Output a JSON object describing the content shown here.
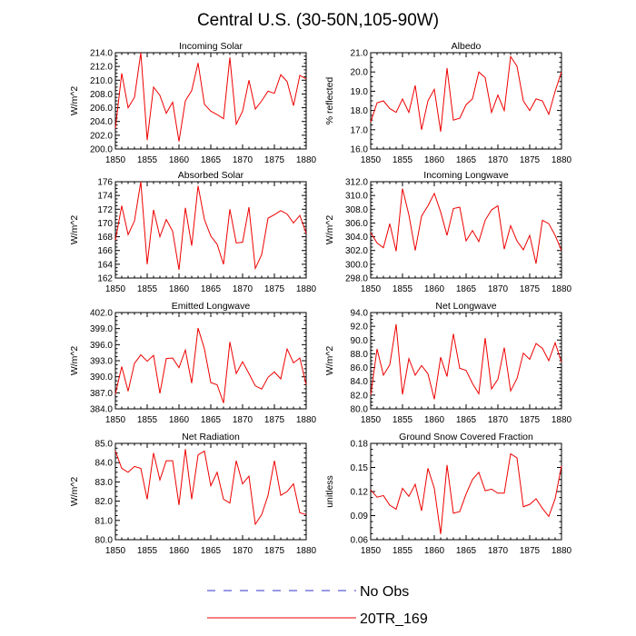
{
  "title": "Central U.S. (30-50N,105-90W)",
  "legend": {
    "items": [
      {
        "label": "No Obs",
        "color": "#3333cc",
        "style": "dashed"
      },
      {
        "label": "20TR_169",
        "color": "#ee0000",
        "style": "solid"
      }
    ]
  },
  "chart_data": [
    {
      "type": "line",
      "title": "Incoming Solar",
      "ylabel": "W/m^2",
      "xlabel": "",
      "xlim": [
        1850,
        1880
      ],
      "ylim": [
        200,
        214
      ],
      "yticks": [
        "200.0",
        "202.0",
        "204.0",
        "206.0",
        "208.0",
        "210.0",
        "212.0",
        "214.0"
      ],
      "xticks": [
        "1850",
        "1855",
        "1860",
        "1865",
        "1870",
        "1875",
        "1880"
      ],
      "x": [
        1850,
        1851,
        1852,
        1853,
        1854,
        1855,
        1856,
        1857,
        1858,
        1859,
        1860,
        1861,
        1862,
        1863,
        1864,
        1865,
        1866,
        1867,
        1868,
        1869,
        1870,
        1871,
        1872,
        1873,
        1874,
        1875,
        1876,
        1877,
        1878,
        1879,
        1880
      ],
      "series": [
        {
          "name": "20TR_169",
          "values": [
            203.0,
            211.0,
            206.0,
            207.5,
            214.0,
            201.3,
            209.0,
            207.8,
            205.2,
            206.8,
            201.1,
            207.0,
            208.5,
            212.5,
            206.5,
            205.5,
            205.0,
            204.4,
            213.3,
            203.6,
            205.5,
            210.0,
            205.8,
            207.0,
            208.4,
            208.1,
            210.8,
            209.8,
            206.3,
            210.7,
            210.2
          ]
        }
      ]
    },
    {
      "type": "line",
      "title": "Albedo",
      "ylabel": "% reflected",
      "xlabel": "",
      "xlim": [
        1850,
        1880
      ],
      "ylim": [
        16,
        21
      ],
      "yticks": [
        "16.0",
        "17.0",
        "18.0",
        "19.0",
        "20.0",
        "21.0"
      ],
      "xticks": [
        "1850",
        "1855",
        "1860",
        "1865",
        "1870",
        "1875",
        "1880"
      ],
      "x": [
        1850,
        1851,
        1852,
        1853,
        1854,
        1855,
        1856,
        1857,
        1858,
        1859,
        1860,
        1861,
        1862,
        1863,
        1864,
        1865,
        1866,
        1867,
        1868,
        1869,
        1870,
        1871,
        1872,
        1873,
        1874,
        1875,
        1876,
        1877,
        1878,
        1879,
        1880
      ],
      "series": [
        {
          "name": "20TR_169",
          "values": [
            17.4,
            18.4,
            18.5,
            18.1,
            17.9,
            18.6,
            17.9,
            19.3,
            17.0,
            18.5,
            19.1,
            16.9,
            20.2,
            17.5,
            17.6,
            18.3,
            18.6,
            20.0,
            19.7,
            17.9,
            18.8,
            18.0,
            20.8,
            20.3,
            18.5,
            18.0,
            18.6,
            18.5,
            17.8,
            19.0,
            20.0
          ]
        }
      ]
    },
    {
      "type": "line",
      "title": "Absorbed Solar",
      "ylabel": "W/m^2",
      "xlabel": "",
      "xlim": [
        1850,
        1880
      ],
      "ylim": [
        162,
        176
      ],
      "yticks": [
        "162",
        "164",
        "166",
        "168",
        "170",
        "172",
        "174",
        "176"
      ],
      "xticks": [
        "1850",
        "1855",
        "1860",
        "1865",
        "1870",
        "1875",
        "1880"
      ],
      "x": [
        1850,
        1851,
        1852,
        1853,
        1854,
        1855,
        1856,
        1857,
        1858,
        1859,
        1860,
        1861,
        1862,
        1863,
        1864,
        1865,
        1866,
        1867,
        1868,
        1869,
        1870,
        1871,
        1872,
        1873,
        1874,
        1875,
        1876,
        1877,
        1878,
        1879,
        1880
      ],
      "series": [
        {
          "name": "20TR_169",
          "values": [
            167.5,
            172.5,
            168.3,
            170.3,
            176.0,
            164.0,
            171.9,
            168.0,
            170.5,
            168.8,
            163.2,
            172.2,
            166.7,
            175.4,
            170.5,
            168.1,
            166.9,
            164.0,
            172.0,
            167.1,
            167.2,
            172.3,
            163.4,
            165.4,
            170.7,
            171.2,
            171.8,
            171.3,
            170.0,
            171.1,
            168.5
          ]
        }
      ]
    },
    {
      "type": "line",
      "title": "Incoming Longwave",
      "ylabel": "W/m^2",
      "xlabel": "",
      "xlim": [
        1850,
        1880
      ],
      "ylim": [
        298,
        312
      ],
      "yticks": [
        "298.0",
        "300.0",
        "302.0",
        "304.0",
        "306.0",
        "308.0",
        "310.0",
        "312.0"
      ],
      "xticks": [
        "1850",
        "1855",
        "1860",
        "1865",
        "1870",
        "1875",
        "1880"
      ],
      "x": [
        1850,
        1851,
        1852,
        1853,
        1854,
        1855,
        1856,
        1857,
        1858,
        1859,
        1860,
        1861,
        1862,
        1863,
        1864,
        1865,
        1866,
        1867,
        1868,
        1869,
        1870,
        1871,
        1872,
        1873,
        1874,
        1875,
        1876,
        1877,
        1878,
        1879,
        1880
      ],
      "series": [
        {
          "name": "20TR_169",
          "values": [
            304.6,
            303.1,
            302.4,
            305.9,
            301.9,
            311.0,
            307.2,
            302.0,
            307.0,
            308.5,
            310.3,
            307.6,
            304.2,
            308.1,
            308.3,
            303.4,
            304.9,
            303.3,
            306.4,
            307.9,
            308.5,
            302.2,
            305.6,
            303.4,
            302.1,
            304.2,
            300.1,
            306.4,
            305.9,
            304.2,
            302.0
          ]
        }
      ]
    },
    {
      "type": "line",
      "title": "Emitted Longwave",
      "ylabel": "W/m^2",
      "xlabel": "",
      "xlim": [
        1850,
        1880
      ],
      "ylim": [
        384,
        402
      ],
      "yticks": [
        "384.0",
        "387.0",
        "390.0",
        "393.0",
        "396.0",
        "399.0",
        "402.0"
      ],
      "xticks": [
        "1850",
        "1855",
        "1860",
        "1865",
        "1870",
        "1875",
        "1880"
      ],
      "x": [
        1850,
        1851,
        1852,
        1853,
        1854,
        1855,
        1856,
        1857,
        1858,
        1859,
        1860,
        1861,
        1862,
        1863,
        1864,
        1865,
        1866,
        1867,
        1868,
        1869,
        1870,
        1871,
        1872,
        1873,
        1874,
        1875,
        1876,
        1877,
        1878,
        1879,
        1880
      ],
      "series": [
        {
          "name": "20TR_169",
          "values": [
            386.8,
            391.9,
            387.3,
            392.5,
            394.1,
            392.9,
            394.0,
            386.9,
            393.4,
            393.5,
            391.7,
            395.0,
            388.8,
            399.1,
            395.2,
            388.9,
            388.5,
            385.1,
            396.5,
            390.6,
            392.8,
            390.6,
            388.3,
            387.7,
            389.9,
            390.9,
            389.6,
            395.2,
            392.6,
            393.5,
            388.5
          ]
        }
      ]
    },
    {
      "type": "line",
      "title": "Net Longwave",
      "ylabel": "W/m^2",
      "xlabel": "",
      "xlim": [
        1850,
        1880
      ],
      "ylim": [
        80,
        94
      ],
      "yticks": [
        "80.0",
        "82.0",
        "84.0",
        "86.0",
        "88.0",
        "90.0",
        "92.0",
        "94.0"
      ],
      "xticks": [
        "1850",
        "1855",
        "1860",
        "1865",
        "1870",
        "1875",
        "1880"
      ],
      "x": [
        1850,
        1851,
        1852,
        1853,
        1854,
        1855,
        1856,
        1857,
        1858,
        1859,
        1860,
        1861,
        1862,
        1863,
        1864,
        1865,
        1866,
        1867,
        1868,
        1869,
        1870,
        1871,
        1872,
        1873,
        1874,
        1875,
        1876,
        1877,
        1878,
        1879,
        1880
      ],
      "series": [
        {
          "name": "20TR_169",
          "values": [
            82.0,
            88.7,
            84.9,
            86.4,
            92.3,
            82.1,
            87.3,
            84.9,
            86.3,
            85.1,
            81.4,
            87.5,
            84.7,
            90.9,
            85.9,
            85.6,
            83.7,
            82.2,
            90.3,
            82.9,
            84.3,
            88.9,
            82.6,
            84.4,
            88.1,
            87.2,
            89.5,
            88.8,
            87.0,
            89.6,
            86.8
          ]
        }
      ]
    },
    {
      "type": "line",
      "title": "Net Radiation",
      "ylabel": "W/m^2",
      "xlabel": "",
      "xlim": [
        1850,
        1880
      ],
      "ylim": [
        80,
        85
      ],
      "yticks": [
        "80.0",
        "81.0",
        "82.0",
        "83.0",
        "84.0",
        "85.0"
      ],
      "xticks": [
        "1850",
        "1855",
        "1860",
        "1865",
        "1870",
        "1875",
        "1880"
      ],
      "x": [
        1850,
        1851,
        1852,
        1853,
        1854,
        1855,
        1856,
        1857,
        1858,
        1859,
        1860,
        1861,
        1862,
        1863,
        1864,
        1865,
        1866,
        1867,
        1868,
        1869,
        1870,
        1871,
        1872,
        1873,
        1874,
        1875,
        1876,
        1877,
        1878,
        1879,
        1880
      ],
      "series": [
        {
          "name": "20TR_169",
          "values": [
            84.6,
            83.7,
            83.5,
            83.8,
            83.7,
            82.1,
            84.5,
            83.1,
            84.1,
            84.1,
            81.8,
            84.7,
            82.1,
            84.4,
            84.6,
            82.8,
            83.5,
            82.1,
            81.9,
            84.1,
            82.9,
            83.3,
            80.8,
            81.3,
            82.3,
            84.1,
            82.3,
            82.5,
            82.9,
            81.4,
            81.3
          ]
        }
      ]
    },
    {
      "type": "line",
      "title": "Ground Snow Covered Fraction",
      "ylabel": "unitless",
      "xlabel": "",
      "xlim": [
        1850,
        1880
      ],
      "ylim": [
        0.06,
        0.18
      ],
      "yticks": [
        "0.06",
        "0.09",
        "0.12",
        "0.15",
        "0.18"
      ],
      "xticks": [
        "1850",
        "1855",
        "1860",
        "1865",
        "1870",
        "1875",
        "1880"
      ],
      "x": [
        1850,
        1851,
        1852,
        1853,
        1854,
        1855,
        1856,
        1857,
        1858,
        1859,
        1860,
        1861,
        1862,
        1863,
        1864,
        1865,
        1866,
        1867,
        1868,
        1869,
        1870,
        1871,
        1872,
        1873,
        1874,
        1875,
        1876,
        1877,
        1878,
        1879,
        1880
      ],
      "series": [
        {
          "name": "20TR_169",
          "values": [
            0.122,
            0.113,
            0.115,
            0.103,
            0.098,
            0.124,
            0.114,
            0.129,
            0.096,
            0.149,
            0.124,
            0.067,
            0.153,
            0.093,
            0.095,
            0.117,
            0.135,
            0.144,
            0.121,
            0.123,
            0.118,
            0.118,
            0.167,
            0.162,
            0.101,
            0.104,
            0.111,
            0.099,
            0.089,
            0.111,
            0.152
          ]
        }
      ]
    }
  ]
}
